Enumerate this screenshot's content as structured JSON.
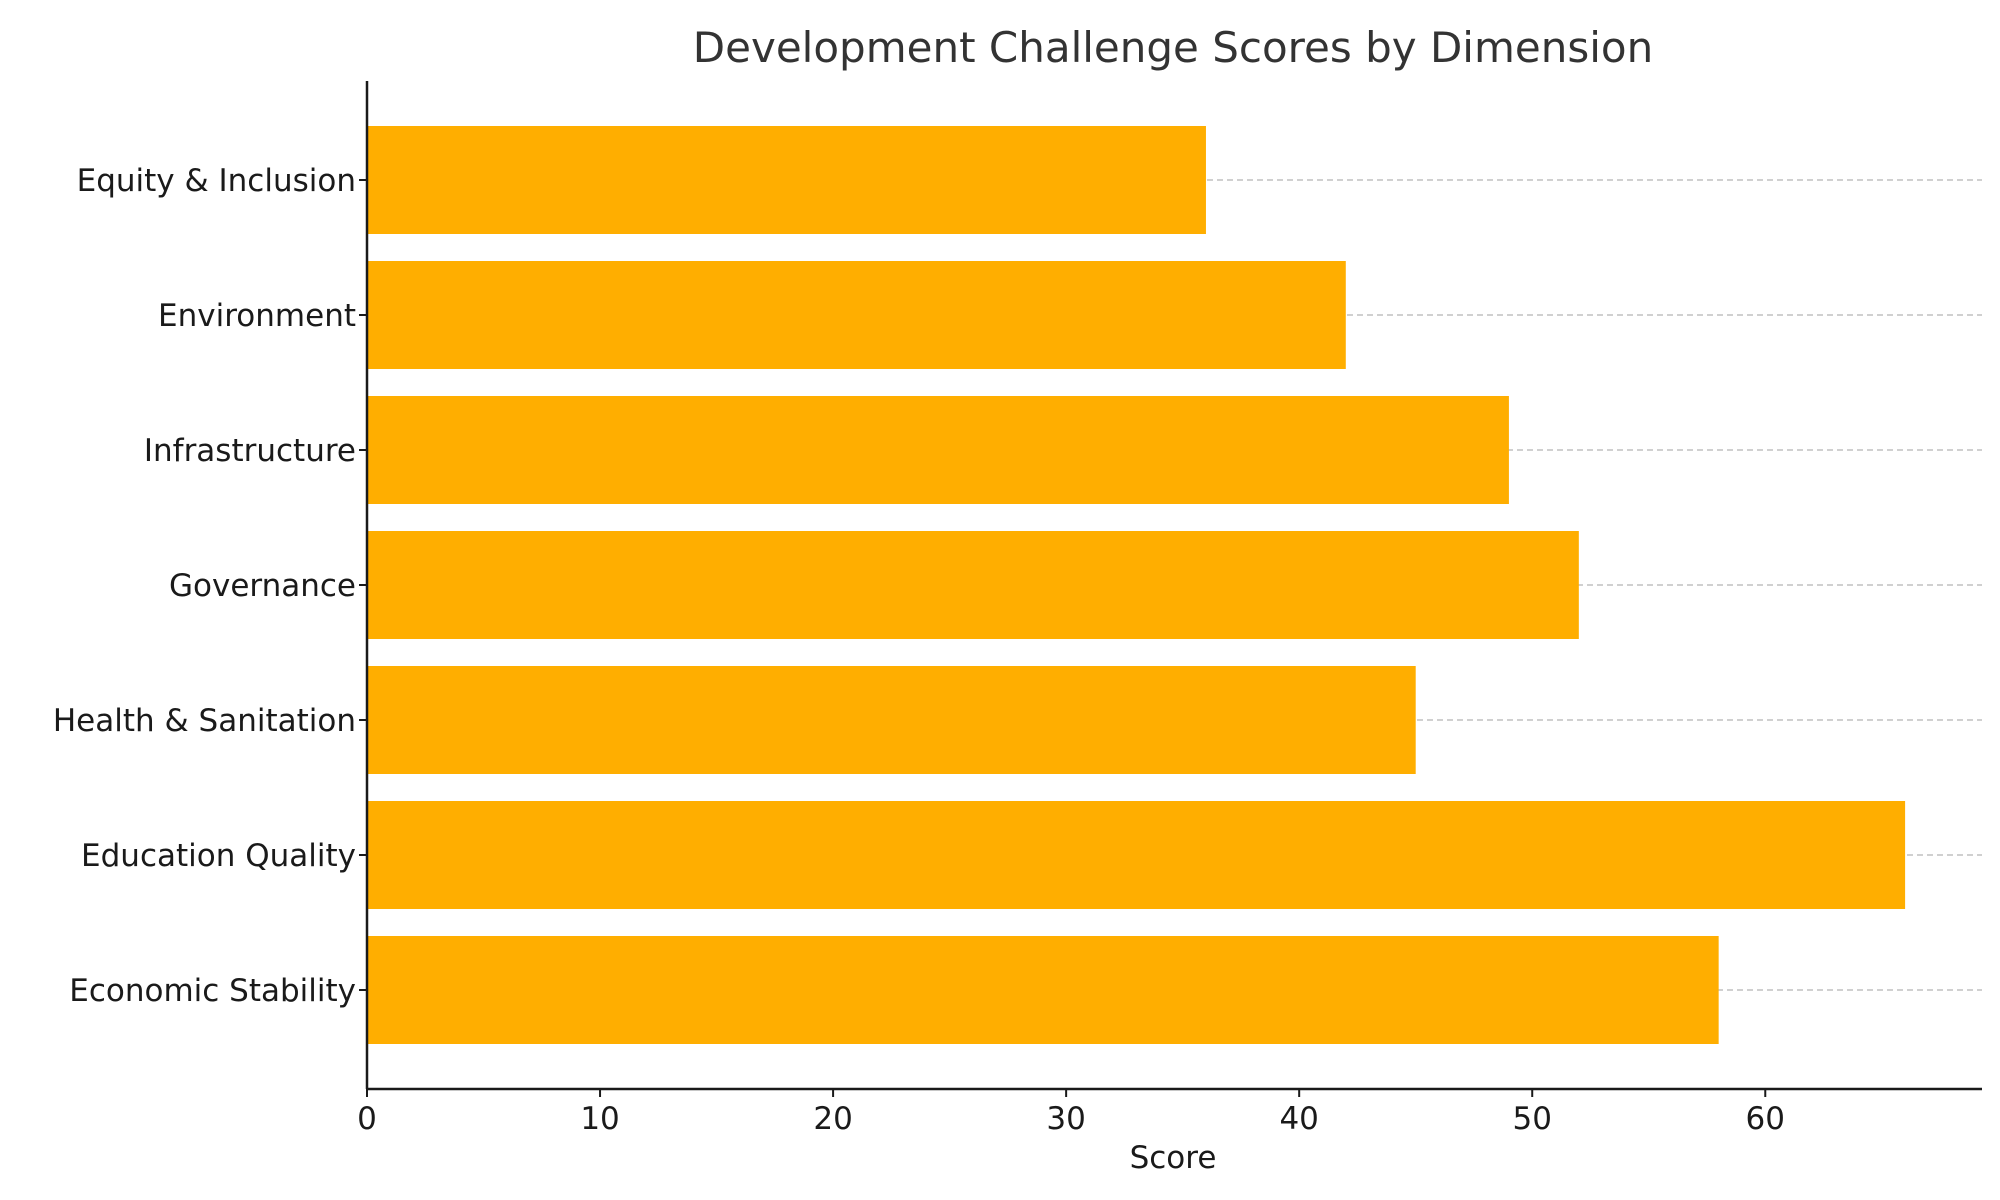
{
  "chart_data": {
    "type": "bar",
    "orientation": "horizontal",
    "title": "Development Challenge Scores by Dimension",
    "xlabel": "Score",
    "ylabel": "",
    "categories": [
      "Economic Stability",
      "Education Quality",
      "Health & Sanitation",
      "Governance",
      "Infrastructure",
      "Environment",
      "Equity & Inclusion"
    ],
    "values": [
      58,
      66,
      45,
      52,
      49,
      42,
      36
    ],
    "xlim": [
      0,
      69.3
    ],
    "xticks": [
      0,
      10,
      20,
      30,
      40,
      50,
      60
    ],
    "grid": "horizontal-dashed",
    "bar_color": "#FFAE00"
  }
}
